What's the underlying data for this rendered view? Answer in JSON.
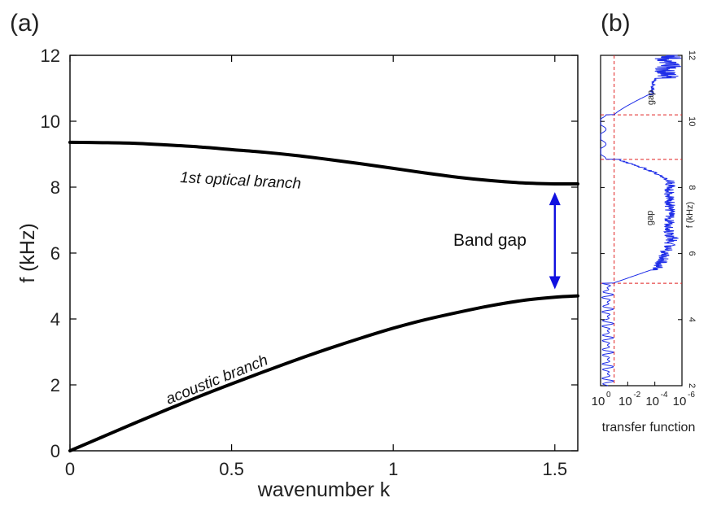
{
  "chart_data": [
    {
      "panel_label": "(a)",
      "type": "line",
      "xlabel": "wavenumber k",
      "ylabel": "f (kHz)",
      "xlim": [
        0,
        1.571
      ],
      "ylim": [
        0,
        12
      ],
      "xticks": [
        "0",
        "0.5",
        "1",
        "1.5"
      ],
      "yticks": [
        "0",
        "2",
        "4",
        "6",
        "8",
        "10",
        "12"
      ],
      "grid": false,
      "series": [
        {
          "name": "1st optical branch",
          "x": [
            0,
            0.1,
            0.2,
            0.3,
            0.4,
            0.5,
            0.6,
            0.7,
            0.8,
            0.9,
            1.0,
            1.1,
            1.2,
            1.3,
            1.4,
            1.5,
            1.571
          ],
          "y": [
            9.36,
            9.35,
            9.33,
            9.28,
            9.22,
            9.14,
            9.06,
            8.96,
            8.84,
            8.71,
            8.57,
            8.43,
            8.3,
            8.2,
            8.13,
            8.1,
            8.1
          ]
        },
        {
          "name": "acoustic branch",
          "x": [
            0,
            0.1,
            0.2,
            0.3,
            0.4,
            0.5,
            0.6,
            0.7,
            0.8,
            0.9,
            1.0,
            1.1,
            1.2,
            1.3,
            1.4,
            1.5,
            1.571
          ],
          "y": [
            0,
            0.42,
            0.84,
            1.25,
            1.65,
            2.03,
            2.4,
            2.76,
            3.1,
            3.42,
            3.72,
            3.98,
            4.2,
            4.4,
            4.56,
            4.66,
            4.7
          ]
        }
      ],
      "annotation": {
        "text": "Band gap",
        "arrow_x": 1.5,
        "arrow_y_from": 4.9,
        "arrow_y_to": 7.85,
        "color": "#1010e0"
      }
    },
    {
      "panel_label": "(b)",
      "type": "line",
      "xlabel": "transfer function",
      "ylabel": "f (kHz)",
      "xscale": "log",
      "x_reversed": true,
      "xlim": [
        1,
        1e-06
      ],
      "ylim": [
        2,
        12
      ],
      "xtick_bases": [
        "10",
        "10",
        "10",
        "10"
      ],
      "xtick_exponents": [
        "0",
        "-2",
        "-4",
        "-6"
      ],
      "yticks": [
        "2",
        "4",
        "6",
        "8",
        "10",
        "12"
      ],
      "gap_labels": [
        "gap",
        "gap"
      ],
      "reference_lines": {
        "x": 0.1,
        "y": [
          5.1,
          8.85,
          10.2
        ],
        "color": "#e02020"
      },
      "series_color": "#1f2ee8"
    }
  ]
}
